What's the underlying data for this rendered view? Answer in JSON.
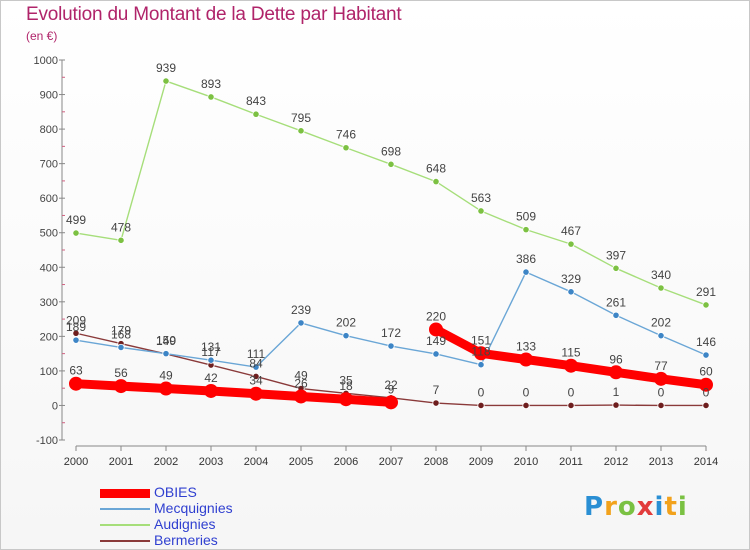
{
  "title": "Evolution du Montant de la Dette par Habitant",
  "subtitle": "(en €)",
  "logo": {
    "text": "Proxiti",
    "colors": [
      "#2a8fd4",
      "#f2a21c",
      "#7ac142",
      "#e23b3b",
      "#2a8fd4",
      "#f2a21c",
      "#7ac142"
    ]
  },
  "chart_data": {
    "type": "line",
    "title": "Evolution du Montant de la Dette par Habitant",
    "subtitle": "(en €)",
    "x": [
      "2000",
      "2001",
      "2002",
      "2003",
      "2004",
      "2005",
      "2006",
      "2007",
      "2008",
      "2009",
      "2010",
      "2011",
      "2012",
      "2013",
      "2014"
    ],
    "ylim": [
      -100,
      1000
    ],
    "yticks": [
      -100,
      0,
      100,
      200,
      300,
      400,
      500,
      600,
      700,
      800,
      900,
      1000
    ],
    "grid": false,
    "legend_position": "bottom-left",
    "series": [
      {
        "name": "OBIES",
        "color": "#ff0000",
        "marker_color": "#ff0000",
        "segments": [
          [
            0,
            7
          ],
          [
            8,
            14
          ]
        ],
        "values": [
          63,
          56,
          49,
          42,
          34,
          26,
          18,
          9,
          220,
          151,
          133,
          115,
          96,
          77,
          60
        ],
        "labels": [
          "63",
          "56",
          "49",
          "42",
          "34",
          "26",
          "18",
          "9",
          "220",
          "151",
          "133",
          "115",
          "96",
          "77",
          "60"
        ]
      },
      {
        "name": "Mecquignies",
        "color": "#6aa6d6",
        "marker_color": "#3d85c6",
        "segments": [
          [
            0,
            14
          ]
        ],
        "values": [
          189,
          168,
          150,
          131,
          111,
          239,
          202,
          172,
          149,
          118,
          386,
          329,
          261,
          202,
          146
        ],
        "labels": [
          "189",
          "168",
          "150",
          "131",
          "111",
          "239",
          "202",
          "172",
          "149",
          "118",
          "386",
          "329",
          "261",
          "202",
          "146"
        ]
      },
      {
        "name": "Audignies",
        "color": "#a6de7a",
        "marker_color": "#7cc142",
        "segments": [
          [
            0,
            14
          ]
        ],
        "values": [
          499,
          478,
          939,
          893,
          843,
          795,
          746,
          698,
          648,
          563,
          509,
          467,
          397,
          340,
          291
        ],
        "labels": [
          "499",
          "478",
          "939",
          "893",
          "843",
          "795",
          "746",
          "698",
          "648",
          "563",
          "509",
          "467",
          "397",
          "340",
          "291"
        ]
      },
      {
        "name": "Bermeries",
        "color": "#8a3a3a",
        "marker_color": "#6e1e1e",
        "segments": [
          [
            0,
            14
          ]
        ],
        "values": [
          209,
          179,
          149,
          117,
          84,
          49,
          35,
          22,
          7,
          0,
          0,
          0,
          1,
          0,
          0
        ],
        "labels": [
          "209",
          "179",
          "149",
          "117",
          "84",
          "49",
          "35",
          "22",
          "7",
          "0",
          "0",
          "0",
          "1",
          "0",
          "0"
        ]
      }
    ]
  }
}
